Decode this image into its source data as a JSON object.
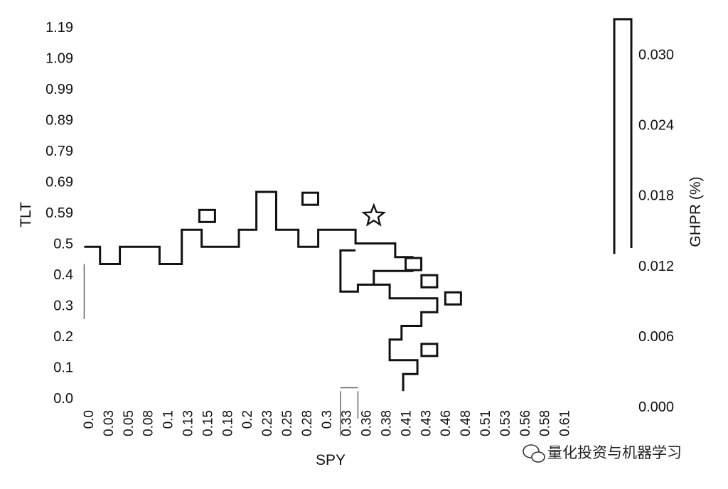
{
  "chart_data": {
    "type": "heatmap",
    "xlabel": "SPY",
    "ylabel": "TLT",
    "x_ticks": [
      "0.0",
      "0.03",
      "0.05",
      "0.08",
      "0.1",
      "0.13",
      "0.15",
      "0.18",
      "0.2",
      "0.23",
      "0.25",
      "0.28",
      "0.3",
      "0.33",
      "0.36",
      "0.38",
      "0.41",
      "0.43",
      "0.46",
      "0.48",
      "0.51",
      "0.53",
      "0.56",
      "0.58",
      "0.61"
    ],
    "y_ticks": [
      "1.19",
      "1.09",
      "0.99",
      "0.89",
      "0.79",
      "0.69",
      "0.59",
      "0.5",
      "0.4",
      "0.3",
      "0.2",
      "0.1",
      "0.0"
    ],
    "colorbar": {
      "label": "GHPR (%)",
      "ticks": [
        "0.030",
        "0.024",
        "0.018",
        "0.012",
        "0.006",
        "0.000"
      ],
      "range": [
        0.0,
        0.033
      ]
    },
    "grid": false,
    "optimal_marker": {
      "symbol": "star",
      "x": 0.36,
      "y": 0.64
    },
    "isolated_cells": [
      {
        "x": 0.15,
        "y": 0.64
      },
      {
        "x": 0.28,
        "y": 0.69
      },
      {
        "x": 0.41,
        "y": 0.5
      },
      {
        "x": 0.43,
        "y": 0.45
      },
      {
        "x": 0.46,
        "y": 0.4
      },
      {
        "x": 0.43,
        "y": 0.25
      }
    ]
  },
  "watermark": {
    "text": "量化投资与机器学习",
    "icon": "wechat-icon"
  },
  "colors": {
    "ink": "#111111",
    "background": "#ffffff"
  }
}
